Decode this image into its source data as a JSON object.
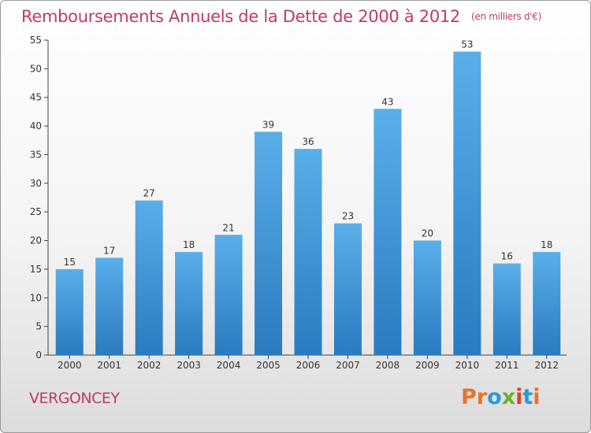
{
  "header": {
    "title": "Remboursements Annuels de la Dette de 2000 à 2012",
    "unit": "(en milliers d'€)"
  },
  "footer": {
    "commune": "VERGONCEY",
    "logo": "Proxiti"
  },
  "colors": {
    "title": "#c0396b",
    "bar_top": "#5aaee8",
    "bar_bottom": "#2a7bc0",
    "logo_letters": [
      "#e8732a",
      "#e8732a",
      "#2a9ad8",
      "#6ab02a",
      "#e0402a",
      "#2a9ad8",
      "#e8732a"
    ]
  },
  "chart_data": {
    "type": "bar",
    "title": "Remboursements Annuels de la Dette de 2000 à 2012",
    "ylabel": "",
    "xlabel": "",
    "categories": [
      "2000",
      "2001",
      "2002",
      "2003",
      "2004",
      "2005",
      "2006",
      "2007",
      "2008",
      "2009",
      "2010",
      "2011",
      "2012"
    ],
    "values": [
      15,
      17,
      27,
      18,
      21,
      39,
      36,
      23,
      43,
      20,
      53,
      16,
      18
    ],
    "ylim": [
      0,
      55
    ],
    "yticks": [
      0,
      5,
      10,
      15,
      20,
      25,
      30,
      35,
      40,
      45,
      50,
      55
    ],
    "grid": false,
    "data_labels": true
  }
}
